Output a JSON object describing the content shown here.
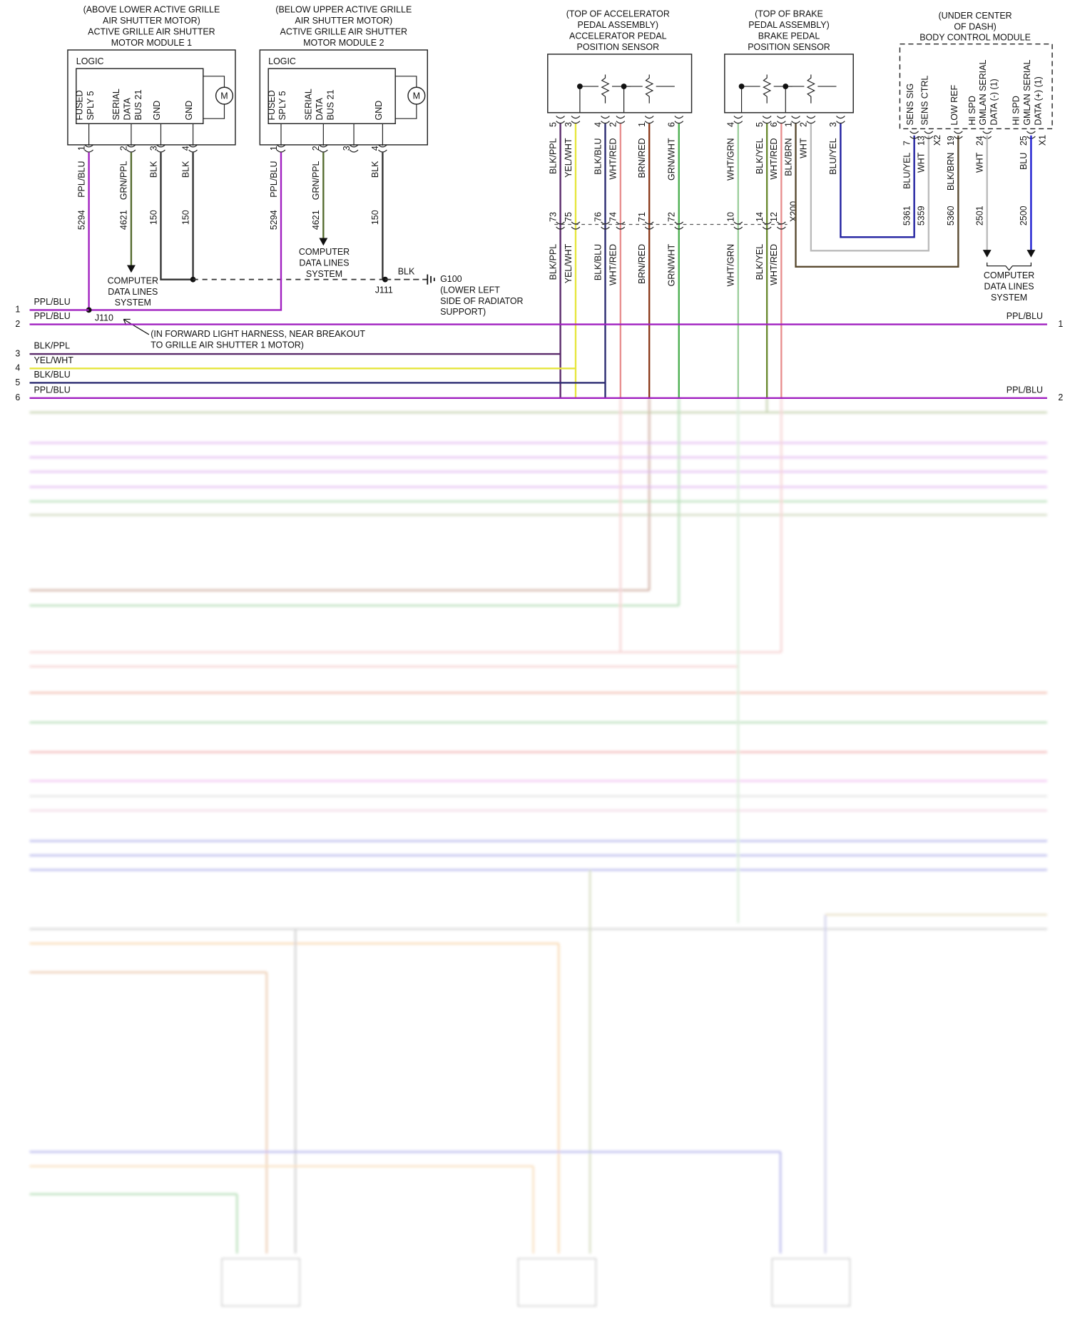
{
  "modules": [
    {
      "location": [
        "(ABOVE LOWER ACTIVE GRILLE",
        "AIR SHUTTER MOTOR)"
      ],
      "name": [
        "ACTIVE GRILLE AIR SHUTTER",
        "MOTOR MODULE 1"
      ],
      "logic": "LOGIC",
      "motor": "M",
      "pins": [
        {
          "function": [
            "FUSED",
            "SPLY 5"
          ],
          "pin": "1",
          "wire": "PPL/BLU",
          "circuit": "5294",
          "color": "#a020c0"
        },
        {
          "function": [
            "SERIAL",
            "DATA",
            "BUS 21"
          ],
          "pin": "2",
          "wire": "GRN/PPL",
          "circuit": "4621",
          "color": "#556b2f",
          "destination": [
            "COMPUTER",
            "DATA LINES",
            "SYSTEM"
          ]
        },
        {
          "function": [
            "GND"
          ],
          "pin": "3",
          "wire": "BLK",
          "circuit": "150",
          "color": "#333333"
        },
        {
          "function": [
            "GND"
          ],
          "pin": "4",
          "wire": "BLK",
          "circuit": "150",
          "color": "#333333"
        }
      ]
    },
    {
      "location": [
        "(BELOW UPPER ACTIVE GRILLE",
        "AIR SHUTTER MOTOR)"
      ],
      "name": [
        "ACTIVE GRILLE AIR SHUTTER",
        "MOTOR MODULE 2"
      ],
      "logic": "LOGIC",
      "motor": "M",
      "pins": [
        {
          "function": [
            "FUSED",
            "SPLY 5"
          ],
          "pin": "1",
          "wire": "PPL/BLU",
          "circuit": "5294",
          "color": "#a020c0"
        },
        {
          "function": [
            "SERIAL",
            "DATA",
            "BUS 21"
          ],
          "pin": "2",
          "wire": "GRN/PPL",
          "circuit": "4621",
          "color": "#556b2f",
          "destination": [
            "COMPUTER",
            "DATA LINES",
            "SYSTEM"
          ]
        },
        {
          "pin": "3"
        },
        {
          "function": [
            "GND"
          ],
          "pin": "4",
          "wire": "BLK",
          "circuit": "150",
          "color": "#333333"
        }
      ]
    }
  ],
  "junctions": [
    "J110",
    "J111"
  ],
  "ground": {
    "wire": "BLK",
    "name": "G100",
    "location": [
      "(LOWER LEFT",
      "SIDE OF RADIATOR",
      "SUPPORT)"
    ]
  },
  "harness_note": [
    "(IN FORWARD LIGHT HARNESS, NEAR BREAKOUT",
    "TO GRILLE AIR SHUTTER 1 MOTOR)"
  ],
  "sensors": [
    {
      "location": [
        "(TOP OF ACCELERATOR",
        "PEDAL ASSEMBLY)"
      ],
      "name": [
        "ACCELERATOR PEDAL",
        "POSITION SENSOR"
      ],
      "pins": [
        {
          "pin": "5",
          "wire": "BLK/PPL",
          "inline_pin": "73",
          "harness_wire": "BLK/PPL",
          "color": "#5a2a6a"
        },
        {
          "pin": "3",
          "wire": "YEL/WHT",
          "inline_pin": "75",
          "harness_wire": "YEL/WHT",
          "color": "#e6e63c"
        },
        {
          "pin": "4",
          "wire": "BLK/BLU",
          "inline_pin": "76",
          "harness_wire": "BLK/BLU",
          "color": "#2a2a70"
        },
        {
          "pin": "2",
          "wire": "WHT/RED",
          "inline_pin": "74",
          "harness_wire": "WHT/RED",
          "color": "#e88f8f"
        },
        {
          "pin": "1",
          "wire": "BRN/RED",
          "inline_pin": "71",
          "harness_wire": "BRN/RED",
          "color": "#8b3a1a"
        },
        {
          "pin": "6",
          "wire": "GRN/WHT",
          "inline_pin": "72",
          "harness_wire": "GRN/WHT",
          "color": "#4caf50"
        }
      ]
    },
    {
      "location": [
        "(TOP OF BRAKE",
        "PEDAL ASSEMBLY)"
      ],
      "name": [
        "BRAKE PEDAL",
        "POSITION SENSOR"
      ],
      "pins": [
        {
          "pin": "4",
          "wire": "WHT/GRN",
          "inline_pin": "10",
          "harness_wire": "WHT/GRN",
          "color": "#9fd09f"
        },
        {
          "pin": "5",
          "wire": "BLK/YEL",
          "inline_pin": "14",
          "harness_wire": "BLK/YEL",
          "color": "#6a8a30"
        },
        {
          "pin": "6",
          "wire": "WHT/RED",
          "inline_pin": "12",
          "harness_wire": "WHT/RED",
          "color": "#e88f8f"
        },
        {
          "pin": "1",
          "wire": "BLK/BRN",
          "color": "#5a4a30"
        },
        {
          "pin": "2",
          "wire": "WHT",
          "color": "#bbbbbb"
        },
        {
          "pin": "3",
          "wire": "BLU/YEL",
          "color": "#2020a0"
        }
      ]
    }
  ],
  "inline_connector": "X200",
  "bcm": {
    "location": [
      "(UNDER CENTER",
      "OF DASH)"
    ],
    "name": "BODY CONTROL MODULE",
    "pins": [
      {
        "function": [
          "SENS SIG"
        ],
        "pin": "7",
        "wire": "BLU/YEL",
        "circuit": "5361",
        "color": "#2020a0"
      },
      {
        "function": [
          "SENS CTRL"
        ],
        "pin": "13",
        "wire": "WHT",
        "circuit": "5359",
        "color": "#bbbbbb"
      },
      {
        "function": [
          "LOW REF"
        ],
        "pin": "19",
        "wire": "BLK/BRN",
        "circuit": "5360",
        "color": "#5a4a30"
      },
      {
        "function": [
          "HI SPD",
          "GMLAN SERIAL",
          "DATA (-) (1)"
        ],
        "pin": "24",
        "wire": "WHT",
        "circuit": "2501",
        "color": "#bbbbbb"
      },
      {
        "function": [
          "HI SPD",
          "GMLAN SERIAL",
          "DATA (+) (1)"
        ],
        "pin": "25",
        "wire": "BLU",
        "circuit": "2500",
        "color": "#1a1ad0"
      }
    ],
    "connectors": [
      "X2",
      "X1"
    ],
    "destination": [
      "COMPUTER",
      "DATA LINES",
      "SYSTEM"
    ]
  },
  "rows": [
    {
      "number": "1",
      "wire": "PPL/BLU",
      "color": "#a020c0"
    },
    {
      "number": "2",
      "wire": "PPL/BLU",
      "right_wire": "PPL/BLU",
      "right_number": "1",
      "color": "#a020c0"
    },
    {
      "number": "3",
      "wire": "BLK/PPL",
      "color": "#5a2a6a"
    },
    {
      "number": "4",
      "wire": "YEL/WHT",
      "color": "#e6e63c"
    },
    {
      "number": "5",
      "wire": "BLK/BLU",
      "color": "#2a2a70"
    },
    {
      "number": "6",
      "wire": "PPL/BLU",
      "right_wire": "PPL/BLU",
      "right_number": "2",
      "color": "#a020c0"
    }
  ]
}
